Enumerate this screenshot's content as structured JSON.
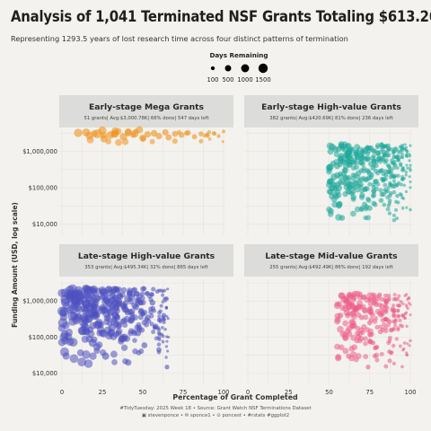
{
  "header": {
    "title": "Analysis of 1,041 Terminated NSF Grants Totaling $613.26M",
    "subtitle": "Representing 1293.5 years of lost research time across four distinct patterns of termination"
  },
  "legend": {
    "title": "Days Remaining",
    "entries": [
      {
        "label": "100",
        "value": 100
      },
      {
        "label": "500",
        "value": 500
      },
      {
        "label": "1000",
        "value": 1000
      },
      {
        "label": "1500",
        "value": 1500
      }
    ]
  },
  "axes": {
    "xlabel": "Percentage of Grant Completed",
    "ylabel": "Funding Amount (USD, log scale)",
    "xticks": [
      0,
      25,
      50,
      75,
      100
    ],
    "yticks": [
      {
        "value": 10000,
        "label": "$10,000"
      },
      {
        "value": 100000,
        "label": "$100,000"
      },
      {
        "value": 1000000,
        "label": "$1,000,000"
      }
    ]
  },
  "caption": {
    "line1": "#TidyTuesday: 2025 Week 18 • Source: Grant Watch NSF Terminations Dataset",
    "line2": "▣ stevenponce • ✉ sponce1 • ⊙ poncest • #rstats #ggplot2"
  },
  "chart_data": {
    "type": "scatter",
    "x_scale": "linear",
    "y_scale": "log",
    "xlim": [
      0,
      100
    ],
    "ylim": [
      5000,
      4000000
    ],
    "grid": true,
    "legend_position": "top-center",
    "panels": [
      {
        "title": "Early-stage Mega Grants",
        "subtitle": "51 grants| Avg:$3,000.78K| 66% done| 547 days left",
        "color": "#f0921e",
        "x_range": [
          10,
          100
        ],
        "logy_range": [
          6.15,
          6.55
        ],
        "count": 51,
        "points": [
          {
            "x": 10,
            "y": 3200000,
            "days": 1100
          },
          {
            "x": 15,
            "y": 3300000,
            "days": 1000
          },
          {
            "x": 17,
            "y": 2700000,
            "days": 900
          },
          {
            "x": 22,
            "y": 3000000,
            "days": 1300
          },
          {
            "x": 25,
            "y": 3700000,
            "days": 1100
          },
          {
            "x": 26,
            "y": 2200000,
            "days": 800
          },
          {
            "x": 30,
            "y": 2800000,
            "days": 900
          },
          {
            "x": 33,
            "y": 3500000,
            "days": 1000
          },
          {
            "x": 38,
            "y": 2500000,
            "days": 800
          },
          {
            "x": 41,
            "y": 3200000,
            "days": 700
          },
          {
            "x": 45,
            "y": 3000000,
            "days": 850
          },
          {
            "x": 48,
            "y": 3900000,
            "days": 700
          },
          {
            "x": 50,
            "y": 2300000,
            "days": 650
          },
          {
            "x": 53,
            "y": 2900000,
            "days": 600
          },
          {
            "x": 57,
            "y": 3100000,
            "days": 600
          },
          {
            "x": 60,
            "y": 2600000,
            "days": 550
          },
          {
            "x": 64,
            "y": 3300000,
            "days": 520
          },
          {
            "x": 66,
            "y": 2400000,
            "days": 500
          },
          {
            "x": 70,
            "y": 3000000,
            "days": 450
          },
          {
            "x": 74,
            "y": 2800000,
            "days": 400
          },
          {
            "x": 78,
            "y": 3200000,
            "days": 350
          },
          {
            "x": 82,
            "y": 2500000,
            "days": 300
          },
          {
            "x": 86,
            "y": 3000000,
            "days": 250
          },
          {
            "x": 90,
            "y": 2700000,
            "days": 200
          },
          {
            "x": 94,
            "y": 3100000,
            "days": 150
          },
          {
            "x": 97,
            "y": 2600000,
            "days": 100
          },
          {
            "x": 100,
            "y": 3500000,
            "days": 60
          }
        ]
      },
      {
        "title": "Early-stage High-value Grants",
        "subtitle": "382 grants| Avg:$420.69K| 81% done| 236 days left",
        "color": "#1fa89a",
        "x_range": [
          50,
          100
        ],
        "logy_range": [
          4.1,
          6.2
        ],
        "count": 382,
        "points": [
          {
            "x": 52,
            "y": 1300000,
            "days": 700
          },
          {
            "x": 53,
            "y": 200000,
            "days": 650
          },
          {
            "x": 55,
            "y": 400000,
            "days": 600
          },
          {
            "x": 56,
            "y": 100000,
            "days": 600
          },
          {
            "x": 57,
            "y": 650000,
            "days": 550
          },
          {
            "x": 58,
            "y": 15000,
            "days": 400
          },
          {
            "x": 60,
            "y": 300000,
            "days": 500
          },
          {
            "x": 62,
            "y": 1400000,
            "days": 500
          },
          {
            "x": 63,
            "y": 130000,
            "days": 450
          },
          {
            "x": 65,
            "y": 55000,
            "days": 400
          },
          {
            "x": 67,
            "y": 800000,
            "days": 450
          },
          {
            "x": 68,
            "y": 250000,
            "days": 400
          },
          {
            "x": 70,
            "y": 500000,
            "days": 380
          },
          {
            "x": 72,
            "y": 90000,
            "days": 350
          },
          {
            "x": 73,
            "y": 30000,
            "days": 300
          },
          {
            "x": 75,
            "y": 1200000,
            "days": 320
          },
          {
            "x": 77,
            "y": 350000,
            "days": 300
          },
          {
            "x": 79,
            "y": 150000,
            "days": 280
          },
          {
            "x": 80,
            "y": 600000,
            "days": 260
          },
          {
            "x": 82,
            "y": 45000,
            "days": 240
          },
          {
            "x": 84,
            "y": 950000,
            "days": 220
          },
          {
            "x": 85,
            "y": 220000,
            "days": 200
          },
          {
            "x": 87,
            "y": 380000,
            "days": 180
          },
          {
            "x": 89,
            "y": 110000,
            "days": 170
          },
          {
            "x": 90,
            "y": 700000,
            "days": 150
          },
          {
            "x": 92,
            "y": 60000,
            "days": 120
          },
          {
            "x": 94,
            "y": 450000,
            "days": 100
          },
          {
            "x": 96,
            "y": 180000,
            "days": 80
          },
          {
            "x": 98,
            "y": 1000000,
            "days": 60
          },
          {
            "x": 100,
            "y": 300000,
            "days": 40
          },
          {
            "x": 100,
            "y": 25000,
            "days": 30
          }
        ]
      },
      {
        "title": "Late-stage High-value Grants",
        "subtitle": "353 grants| Avg:$495.34K| 32% done| 865 days left",
        "color": "#4f51c0",
        "x_range": [
          0,
          66
        ],
        "logy_range": [
          4.2,
          6.35
        ],
        "count": 353,
        "points": [
          {
            "x": 2,
            "y": 1100000,
            "days": 1500
          },
          {
            "x": 5,
            "y": 2000000,
            "days": 1400
          },
          {
            "x": 7,
            "y": 600000,
            "days": 1350
          },
          {
            "x": 9,
            "y": 300000,
            "days": 1300
          },
          {
            "x": 11,
            "y": 1300000,
            "days": 1300
          },
          {
            "x": 13,
            "y": 150000,
            "days": 1200
          },
          {
            "x": 15,
            "y": 800000,
            "days": 1200
          },
          {
            "x": 17,
            "y": 450000,
            "days": 1100
          },
          {
            "x": 19,
            "y": 70000,
            "days": 1000
          },
          {
            "x": 21,
            "y": 1200000,
            "days": 1100
          },
          {
            "x": 23,
            "y": 250000,
            "days": 1000
          },
          {
            "x": 25,
            "y": 550000,
            "days": 950
          },
          {
            "x": 27,
            "y": 30000,
            "days": 800
          },
          {
            "x": 29,
            "y": 900000,
            "days": 900
          },
          {
            "x": 31,
            "y": 180000,
            "days": 850
          },
          {
            "x": 33,
            "y": 400000,
            "days": 800
          },
          {
            "x": 35,
            "y": 1000000,
            "days": 780
          },
          {
            "x": 37,
            "y": 90000,
            "days": 700
          },
          {
            "x": 39,
            "y": 600000,
            "days": 700
          },
          {
            "x": 41,
            "y": 20000,
            "days": 550
          },
          {
            "x": 43,
            "y": 300000,
            "days": 620
          },
          {
            "x": 45,
            "y": 750000,
            "days": 600
          },
          {
            "x": 47,
            "y": 130000,
            "days": 550
          },
          {
            "x": 49,
            "y": 500000,
            "days": 520
          },
          {
            "x": 51,
            "y": 60000,
            "days": 450
          },
          {
            "x": 53,
            "y": 350000,
            "days": 420
          },
          {
            "x": 56,
            "y": 900000,
            "days": 400
          },
          {
            "x": 58,
            "y": 200000,
            "days": 350
          },
          {
            "x": 60,
            "y": 45000,
            "days": 300
          },
          {
            "x": 63,
            "y": 400000,
            "days": 250
          },
          {
            "x": 65,
            "y": 15000,
            "days": 200
          }
        ]
      },
      {
        "title": "Late-stage Mid-value Grants",
        "subtitle": "255 grants| Avg:$492.49K| 86% done| 192 days left",
        "color": "#ee5c8c",
        "x_range": [
          55,
          100
        ],
        "logy_range": [
          4.1,
          6.2
        ],
        "count": 255,
        "points": [
          {
            "x": 57,
            "y": 400000,
            "days": 400
          },
          {
            "x": 60,
            "y": 1100000,
            "days": 380
          },
          {
            "x": 62,
            "y": 30000,
            "days": 300
          },
          {
            "x": 64,
            "y": 200000,
            "days": 350
          },
          {
            "x": 66,
            "y": 650000,
            "days": 320
          },
          {
            "x": 68,
            "y": 100000,
            "days": 300
          },
          {
            "x": 70,
            "y": 350000,
            "days": 280
          },
          {
            "x": 72,
            "y": 1300000,
            "days": 280
          },
          {
            "x": 74,
            "y": 15000,
            "days": 200
          },
          {
            "x": 75,
            "y": 250000,
            "days": 250
          },
          {
            "x": 77,
            "y": 70000,
            "days": 230
          },
          {
            "x": 79,
            "y": 800000,
            "days": 220
          },
          {
            "x": 81,
            "y": 450000,
            "days": 200
          },
          {
            "x": 83,
            "y": 160000,
            "days": 180
          },
          {
            "x": 85,
            "y": 1000000,
            "days": 170
          },
          {
            "x": 87,
            "y": 40000,
            "days": 140
          },
          {
            "x": 89,
            "y": 550000,
            "days": 140
          },
          {
            "x": 91,
            "y": 300000,
            "days": 120
          },
          {
            "x": 93,
            "y": 750000,
            "days": 100
          },
          {
            "x": 95,
            "y": 200000,
            "days": 80
          },
          {
            "x": 97,
            "y": 450000,
            "days": 60
          },
          {
            "x": 99,
            "y": 1200000,
            "days": 40
          },
          {
            "x": 100,
            "y": 80000,
            "days": 30
          }
        ]
      }
    ]
  }
}
